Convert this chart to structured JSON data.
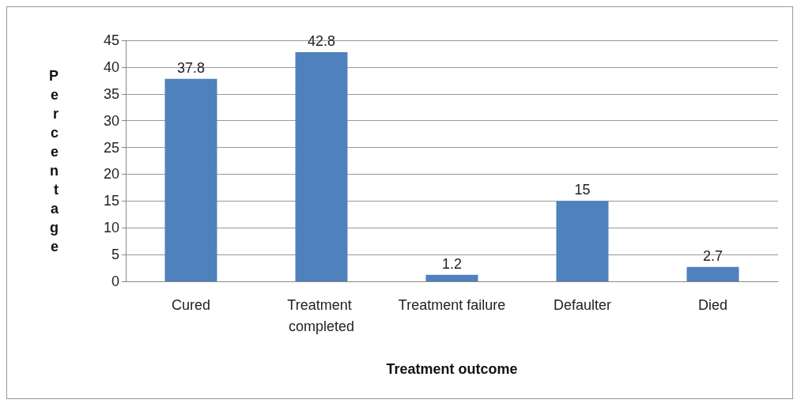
{
  "chart_data": {
    "type": "bar",
    "xlabel": "Treatment outcome",
    "ylabel": "Percentage",
    "categories": [
      "Cured",
      "Treatment completed",
      "Treatment failure",
      "Defaulter",
      "Died"
    ],
    "values": [
      37.8,
      42.8,
      1.2,
      15,
      2.7
    ],
    "color": "#4f81bd",
    "ylim": [
      0,
      45
    ],
    "yticks": [
      0,
      5,
      10,
      15,
      20,
      25,
      30,
      35,
      40,
      45
    ],
    "grid": "y",
    "data_labels": true
  }
}
